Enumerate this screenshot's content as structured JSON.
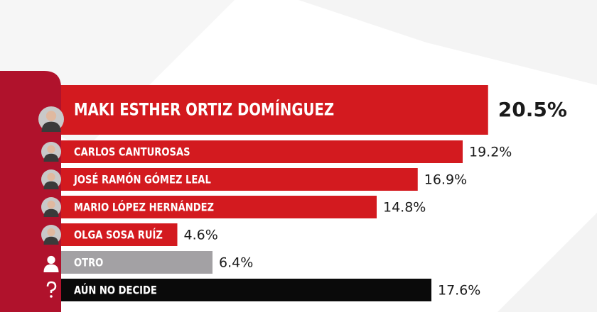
{
  "chart_data": {
    "type": "bar",
    "orientation": "horizontal",
    "categories": [
      "MAKI ESTHER ORTIZ DOMÍNGUEZ",
      "CARLOS CANTUROSAS",
      "JOSÉ RAMÓN GÓMEZ LEAL",
      "MARIO LÓPEZ HERNÁNDEZ",
      "OLGA SOSA RUÍZ",
      "OTRO",
      "AÚN NO DECIDE"
    ],
    "values": [
      20.5,
      19.2,
      16.9,
      14.8,
      4.6,
      6.4,
      17.6
    ],
    "value_labels": [
      "20.5%",
      "19.2%",
      "16.9%",
      "14.8%",
      "4.6%",
      "6.4%",
      "17.6%"
    ],
    "colors": [
      "#d31a1f",
      "#d31a1f",
      "#d31a1f",
      "#d31a1f",
      "#d31a1f",
      "#a3a1a4",
      "#0a0a0a"
    ]
  }
}
